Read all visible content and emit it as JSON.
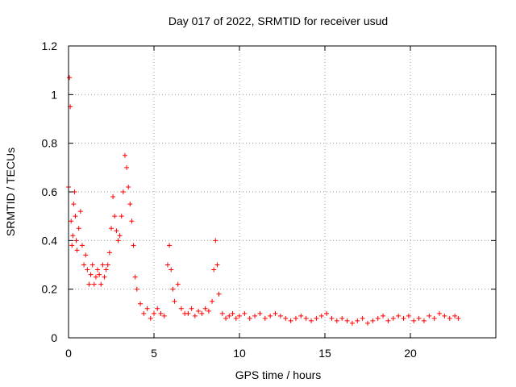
{
  "chart_data": {
    "type": "scatter",
    "title": "Day 017 of 2022, SRMTID for receiver usud",
    "xlabel": "GPS time / hours",
    "ylabel": "SRMTID / TECUs",
    "xlim": [
      0,
      25
    ],
    "ylim": [
      0,
      1.2
    ],
    "xticks": [
      0,
      5,
      10,
      15,
      20
    ],
    "xtick_labels": [
      "0",
      "5",
      "10",
      "15",
      "20"
    ],
    "yticks": [
      0,
      0.2,
      0.4,
      0.6,
      0.8,
      1,
      1.2
    ],
    "ytick_labels": [
      "0",
      "0.2",
      "0.4",
      "0.6",
      "0.8",
      "1",
      "1.2"
    ],
    "grid": true,
    "marker": "+",
    "color": "#ff0000",
    "series": [
      {
        "name": "usud",
        "x": [
          0.0,
          0.05,
          0.1,
          0.15,
          0.2,
          0.25,
          0.3,
          0.35,
          0.4,
          0.45,
          0.5,
          0.6,
          0.7,
          0.8,
          0.9,
          1.0,
          1.1,
          1.2,
          1.3,
          1.4,
          1.5,
          1.6,
          1.7,
          1.8,
          1.9,
          2.0,
          2.1,
          2.2,
          2.3,
          2.4,
          2.5,
          2.6,
          2.7,
          2.8,
          2.9,
          3.0,
          3.1,
          3.2,
          3.3,
          3.4,
          3.5,
          3.6,
          3.7,
          3.8,
          3.9,
          4.0,
          4.2,
          4.4,
          4.6,
          4.8,
          5.0,
          5.2,
          5.4,
          5.6,
          5.8,
          5.9,
          6.0,
          6.1,
          6.2,
          6.4,
          6.6,
          6.8,
          7.0,
          7.2,
          7.4,
          7.6,
          7.8,
          8.0,
          8.2,
          8.4,
          8.5,
          8.6,
          8.7,
          8.8,
          9.0,
          9.2,
          9.4,
          9.6,
          9.8,
          10.0,
          10.3,
          10.6,
          10.9,
          11.2,
          11.5,
          11.8,
          12.1,
          12.4,
          12.7,
          13.0,
          13.3,
          13.6,
          13.9,
          14.2,
          14.5,
          14.8,
          15.1,
          15.4,
          15.7,
          16.0,
          16.3,
          16.6,
          16.9,
          17.2,
          17.5,
          17.8,
          18.1,
          18.4,
          18.7,
          19.0,
          19.3,
          19.6,
          19.9,
          20.2,
          20.5,
          20.8,
          21.1,
          21.4,
          21.7,
          22.0,
          22.3,
          22.6,
          22.8
        ],
        "y": [
          0.62,
          1.07,
          0.95,
          0.48,
          0.38,
          0.42,
          0.55,
          0.6,
          0.5,
          0.4,
          0.36,
          0.45,
          0.52,
          0.38,
          0.3,
          0.34,
          0.28,
          0.22,
          0.26,
          0.3,
          0.22,
          0.25,
          0.28,
          0.26,
          0.22,
          0.3,
          0.25,
          0.28,
          0.3,
          0.35,
          0.45,
          0.58,
          0.5,
          0.44,
          0.4,
          0.42,
          0.5,
          0.6,
          0.75,
          0.7,
          0.62,
          0.55,
          0.48,
          0.38,
          0.25,
          0.2,
          0.14,
          0.1,
          0.12,
          0.08,
          0.1,
          0.12,
          0.1,
          0.09,
          0.3,
          0.38,
          0.28,
          0.2,
          0.15,
          0.22,
          0.12,
          0.1,
          0.1,
          0.12,
          0.09,
          0.11,
          0.1,
          0.12,
          0.11,
          0.15,
          0.28,
          0.4,
          0.3,
          0.18,
          0.1,
          0.08,
          0.09,
          0.1,
          0.08,
          0.09,
          0.1,
          0.08,
          0.09,
          0.1,
          0.08,
          0.09,
          0.1,
          0.09,
          0.08,
          0.07,
          0.08,
          0.09,
          0.08,
          0.07,
          0.08,
          0.09,
          0.1,
          0.08,
          0.07,
          0.08,
          0.07,
          0.06,
          0.07,
          0.08,
          0.06,
          0.07,
          0.08,
          0.09,
          0.07,
          0.08,
          0.09,
          0.08,
          0.09,
          0.07,
          0.08,
          0.07,
          0.09,
          0.08,
          0.1,
          0.09,
          0.08,
          0.09,
          0.08
        ]
      }
    ]
  }
}
